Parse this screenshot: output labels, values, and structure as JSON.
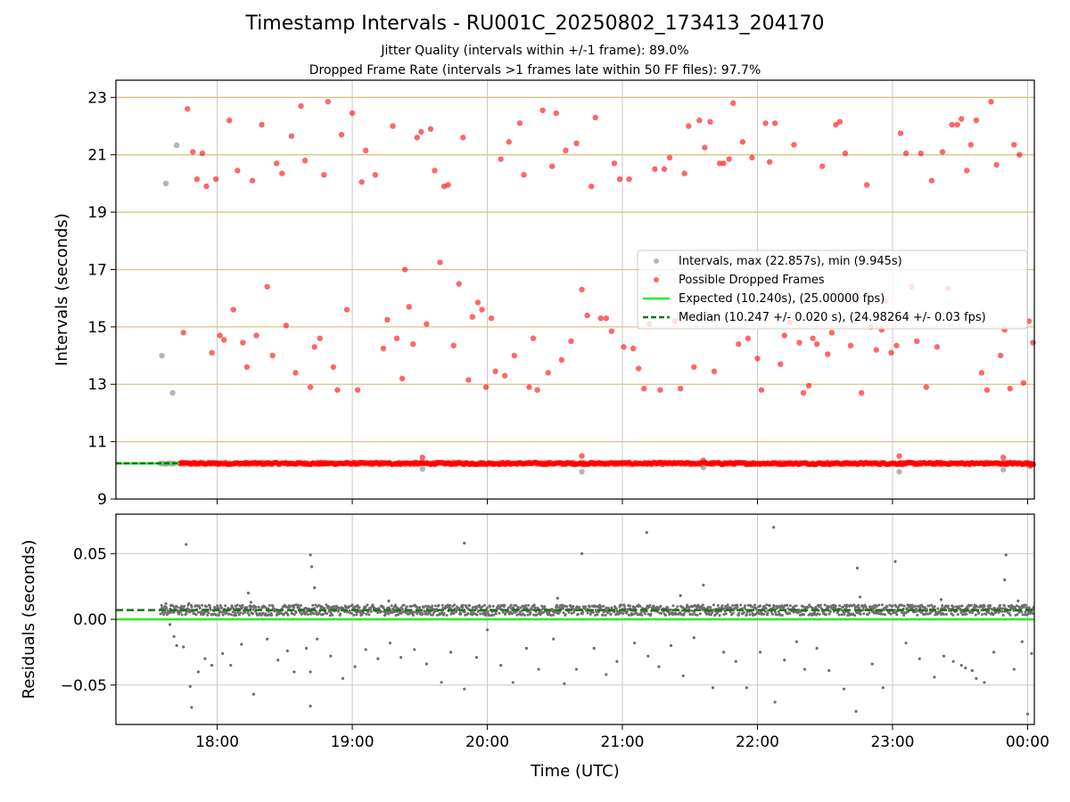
{
  "chart_data": {
    "title": "Timestamp Intervals - RU001C_20250802_173413_204170",
    "subtitle_lines": [
      "Jitter Quality (intervals within +/-1 frame): 89.0%",
      "Dropped Frame Rate (intervals >1 frames late within 50 FF files): 97.7%"
    ],
    "xlabel": "Time (UTC)",
    "x_ticks": [
      "18:00",
      "19:00",
      "20:00",
      "21:00",
      "22:00",
      "23:00",
      "00:00"
    ],
    "x_range_hours": [
      17.25,
      24.05
    ],
    "top": {
      "type": "scatter",
      "ylabel": "Intervals (seconds)",
      "ylim": [
        9,
        23.6
      ],
      "y_ticks": [
        9,
        11,
        13,
        15,
        17,
        19,
        21,
        23
      ],
      "grid": "horizontal, goldenrod",
      "legend_position": "right",
      "legend": [
        "Intervals, max (22.857s), min (9.945s)",
        "Possible Dropped Frames",
        "Expected (10.240s), (25.00000 fps)",
        "Median (10.247 +/- 0.020 s), (24.98264 +/- 0.03 fps)"
      ],
      "expected_value": 10.24,
      "median_value": 10.247,
      "baseline_band_from_hours": 17.72,
      "gray_points": [
        [
          17.59,
          14.0
        ],
        [
          17.62,
          20.0
        ],
        [
          17.67,
          12.7
        ],
        [
          17.7,
          21.33
        ],
        [
          17.58,
          10.24
        ],
        [
          17.6,
          10.24
        ],
        [
          17.62,
          10.22
        ],
        [
          17.64,
          10.25
        ],
        [
          17.66,
          10.23
        ],
        [
          17.68,
          10.24
        ],
        [
          19.52,
          10.05
        ],
        [
          20.7,
          9.95
        ],
        [
          21.6,
          10.1
        ],
        [
          23.05,
          9.95
        ],
        [
          23.82,
          10.02
        ]
      ],
      "red_points": [
        [
          17.75,
          14.8
        ],
        [
          17.78,
          22.6
        ],
        [
          17.82,
          21.1
        ],
        [
          17.85,
          20.15
        ],
        [
          17.89,
          21.05
        ],
        [
          17.92,
          19.9
        ],
        [
          17.96,
          14.1
        ],
        [
          17.99,
          20.15
        ],
        [
          18.02,
          14.7
        ],
        [
          18.05,
          14.55
        ],
        [
          18.09,
          22.2
        ],
        [
          18.12,
          15.6
        ],
        [
          18.15,
          20.45
        ],
        [
          18.19,
          14.45
        ],
        [
          18.22,
          13.6
        ],
        [
          18.26,
          20.1
        ],
        [
          18.29,
          14.7
        ],
        [
          18.33,
          22.05
        ],
        [
          18.37,
          16.4
        ],
        [
          18.41,
          14.0
        ],
        [
          18.44,
          20.7
        ],
        [
          18.48,
          20.35
        ],
        [
          18.51,
          15.05
        ],
        [
          18.55,
          21.65
        ],
        [
          18.58,
          13.4
        ],
        [
          18.62,
          22.7
        ],
        [
          18.65,
          20.8
        ],
        [
          18.69,
          12.9
        ],
        [
          18.72,
          14.3
        ],
        [
          18.76,
          14.6
        ],
        [
          18.79,
          20.3
        ],
        [
          18.82,
          22.85
        ],
        [
          18.86,
          13.6
        ],
        [
          18.89,
          12.8
        ],
        [
          18.92,
          21.7
        ],
        [
          18.96,
          15.6
        ],
        [
          19.0,
          22.45
        ],
        [
          19.04,
          12.8
        ],
        [
          19.07,
          20.05
        ],
        [
          19.1,
          21.15
        ],
        [
          19.17,
          20.3
        ],
        [
          19.23,
          14.25
        ],
        [
          19.26,
          15.25
        ],
        [
          19.3,
          22.0
        ],
        [
          19.33,
          14.6
        ],
        [
          19.37,
          13.2
        ],
        [
          19.39,
          17.0
        ],
        [
          19.42,
          15.7
        ],
        [
          19.45,
          14.4
        ],
        [
          19.48,
          21.6
        ],
        [
          19.51,
          21.8
        ],
        [
          19.55,
          15.1
        ],
        [
          19.58,
          21.9
        ],
        [
          19.61,
          20.45
        ],
        [
          19.65,
          17.25
        ],
        [
          19.68,
          19.9
        ],
        [
          19.71,
          19.95
        ],
        [
          19.75,
          14.35
        ],
        [
          19.79,
          16.5
        ],
        [
          19.82,
          21.6
        ],
        [
          19.86,
          13.15
        ],
        [
          19.89,
          15.35
        ],
        [
          19.93,
          15.85
        ],
        [
          19.96,
          15.6
        ],
        [
          19.99,
          12.9
        ],
        [
          20.03,
          15.3
        ],
        [
          20.06,
          13.45
        ],
        [
          20.1,
          20.85
        ],
        [
          20.13,
          13.3
        ],
        [
          20.16,
          21.45
        ],
        [
          20.2,
          14.0
        ],
        [
          20.24,
          22.1
        ],
        [
          20.27,
          20.3
        ],
        [
          20.31,
          12.9
        ],
        [
          20.34,
          14.6
        ],
        [
          20.37,
          12.8
        ],
        [
          20.41,
          22.55
        ],
        [
          20.45,
          13.4
        ],
        [
          20.48,
          20.6
        ],
        [
          20.51,
          22.45
        ],
        [
          20.55,
          13.85
        ],
        [
          20.58,
          21.15
        ],
        [
          20.62,
          14.5
        ],
        [
          20.66,
          21.4
        ],
        [
          20.7,
          16.3
        ],
        [
          20.74,
          15.4
        ],
        [
          20.77,
          19.9
        ],
        [
          20.8,
          22.3
        ],
        [
          20.84,
          15.3
        ],
        [
          20.88,
          15.3
        ],
        [
          20.92,
          14.85
        ],
        [
          20.94,
          20.7
        ],
        [
          20.98,
          20.15
        ],
        [
          21.01,
          14.3
        ],
        [
          21.05,
          20.15
        ],
        [
          21.08,
          14.25
        ],
        [
          21.12,
          13.55
        ],
        [
          21.16,
          12.85
        ],
        [
          21.2,
          15.1
        ],
        [
          21.24,
          20.5
        ],
        [
          21.28,
          12.8
        ],
        [
          21.31,
          20.5
        ],
        [
          21.35,
          20.9
        ],
        [
          21.39,
          15.2
        ],
        [
          21.43,
          12.85
        ],
        [
          21.46,
          20.35
        ],
        [
          21.49,
          22.0
        ],
        [
          21.53,
          13.6
        ],
        [
          21.57,
          22.2
        ],
        [
          21.61,
          21.25
        ],
        [
          21.65,
          22.15
        ],
        [
          21.68,
          13.45
        ],
        [
          21.72,
          20.7
        ],
        [
          21.75,
          20.7
        ],
        [
          21.79,
          20.85
        ],
        [
          21.82,
          22.8
        ],
        [
          21.86,
          14.4
        ],
        [
          21.89,
          21.45
        ],
        [
          21.93,
          14.6
        ],
        [
          21.96,
          20.9
        ],
        [
          22.0,
          13.9
        ],
        [
          22.03,
          12.8
        ],
        [
          22.06,
          22.1
        ],
        [
          22.09,
          20.75
        ],
        [
          22.13,
          22.1
        ],
        [
          22.17,
          13.7
        ],
        [
          22.2,
          14.7
        ],
        [
          22.24,
          15.15
        ],
        [
          22.27,
          21.35
        ],
        [
          22.31,
          14.45
        ],
        [
          22.34,
          12.7
        ],
        [
          22.38,
          12.95
        ],
        [
          22.41,
          14.6
        ],
        [
          22.44,
          14.4
        ],
        [
          22.48,
          20.6
        ],
        [
          22.52,
          14.05
        ],
        [
          22.55,
          14.8
        ],
        [
          22.58,
          22.05
        ],
        [
          22.61,
          22.15
        ],
        [
          22.65,
          21.05
        ],
        [
          22.69,
          14.35
        ],
        [
          22.73,
          16.0
        ],
        [
          22.77,
          12.7
        ],
        [
          22.81,
          19.95
        ],
        [
          22.84,
          15.0
        ],
        [
          22.88,
          14.2
        ],
        [
          22.92,
          14.9
        ],
        [
          22.95,
          15.9
        ],
        [
          22.99,
          14.1
        ],
        [
          23.03,
          14.35
        ],
        [
          23.06,
          21.75
        ],
        [
          23.1,
          21.05
        ],
        [
          23.14,
          16.4
        ],
        [
          23.18,
          14.5
        ],
        [
          23.21,
          21.05
        ],
        [
          23.25,
          12.9
        ],
        [
          23.29,
          20.1
        ],
        [
          23.33,
          14.3
        ],
        [
          23.37,
          21.1
        ],
        [
          23.41,
          16.35
        ],
        [
          23.44,
          22.05
        ],
        [
          23.48,
          22.05
        ],
        [
          23.51,
          22.25
        ],
        [
          23.55,
          20.45
        ],
        [
          23.58,
          21.35
        ],
        [
          23.62,
          22.2
        ],
        [
          23.66,
          13.4
        ],
        [
          23.7,
          12.8
        ],
        [
          23.73,
          22.85
        ],
        [
          23.77,
          20.65
        ],
        [
          23.8,
          14.0
        ],
        [
          23.83,
          14.9
        ],
        [
          23.87,
          12.85
        ],
        [
          23.9,
          21.35
        ],
        [
          23.94,
          21.0
        ],
        [
          23.97,
          13.05
        ],
        [
          24.01,
          15.2
        ],
        [
          24.04,
          14.45
        ],
        [
          19.52,
          10.45
        ],
        [
          20.7,
          10.5
        ],
        [
          21.6,
          10.35
        ],
        [
          23.05,
          10.5
        ],
        [
          23.82,
          10.45
        ],
        [
          24.02,
          10.15
        ]
      ]
    },
    "bottom": {
      "type": "scatter",
      "ylabel": "Residuals (seconds)",
      "ylim": [
        -0.08,
        0.08
      ],
      "y_ticks": [
        "0.05",
        "0.00",
        "−0.05"
      ],
      "y_tick_values": [
        0.05,
        0.0,
        -0.05
      ],
      "grid": "both, gray",
      "expected_residual": 0.0,
      "median_residual": 0.007,
      "dense_band": {
        "x_start": 17.58,
        "x_end": 24.05,
        "center": 0.007,
        "spread": 0.004
      },
      "outliers": [
        [
          17.62,
          0.012
        ],
        [
          17.65,
          -0.004
        ],
        [
          17.68,
          -0.013
        ],
        [
          17.7,
          -0.02
        ],
        [
          17.75,
          -0.021
        ],
        [
          17.77,
          0.057
        ],
        [
          17.8,
          -0.051
        ],
        [
          17.81,
          -0.067
        ],
        [
          17.86,
          -0.04
        ],
        [
          17.91,
          -0.03
        ],
        [
          17.96,
          -0.035
        ],
        [
          18.04,
          -0.026
        ],
        [
          18.1,
          -0.035
        ],
        [
          18.18,
          -0.019
        ],
        [
          18.23,
          0.02
        ],
        [
          18.27,
          -0.057
        ],
        [
          18.37,
          -0.015
        ],
        [
          18.45,
          -0.031
        ],
        [
          18.52,
          -0.024
        ],
        [
          18.57,
          -0.04
        ],
        [
          18.66,
          -0.022
        ],
        [
          18.69,
          -0.04
        ],
        [
          18.69,
          -0.066
        ],
        [
          18.69,
          0.049
        ],
        [
          18.7,
          0.04
        ],
        [
          18.72,
          0.024
        ],
        [
          18.74,
          -0.015
        ],
        [
          18.84,
          -0.028
        ],
        [
          18.93,
          -0.045
        ],
        [
          19.02,
          -0.036
        ],
        [
          19.1,
          -0.023
        ],
        [
          19.19,
          -0.03
        ],
        [
          19.28,
          -0.018
        ],
        [
          19.36,
          -0.029
        ],
        [
          19.46,
          -0.023
        ],
        [
          19.55,
          -0.034
        ],
        [
          19.66,
          -0.048
        ],
        [
          19.73,
          -0.025
        ],
        [
          19.83,
          0.058
        ],
        [
          19.83,
          -0.053
        ],
        [
          19.92,
          -0.029
        ],
        [
          20.0,
          -0.008
        ],
        [
          20.1,
          -0.035
        ],
        [
          20.19,
          -0.048
        ],
        [
          20.29,
          -0.022
        ],
        [
          20.38,
          -0.038
        ],
        [
          20.49,
          -0.015
        ],
        [
          20.57,
          -0.049
        ],
        [
          20.66,
          -0.038
        ],
        [
          20.7,
          0.05
        ],
        [
          20.79,
          -0.022
        ],
        [
          20.88,
          -0.042
        ],
        [
          20.96,
          -0.032
        ],
        [
          21.09,
          -0.018
        ],
        [
          21.18,
          0.066
        ],
        [
          21.19,
          -0.028
        ],
        [
          21.27,
          -0.036
        ],
        [
          21.36,
          -0.02
        ],
        [
          21.45,
          -0.043
        ],
        [
          21.53,
          -0.014
        ],
        [
          21.6,
          0.026
        ],
        [
          21.67,
          -0.052
        ],
        [
          21.75,
          -0.025
        ],
        [
          21.84,
          -0.032
        ],
        [
          21.92,
          -0.052
        ],
        [
          22.02,
          -0.025
        ],
        [
          22.12,
          0.07
        ],
        [
          22.13,
          -0.063
        ],
        [
          22.2,
          -0.031
        ],
        [
          22.29,
          -0.017
        ],
        [
          22.35,
          -0.038
        ],
        [
          22.44,
          -0.022
        ],
        [
          22.53,
          -0.039
        ],
        [
          22.64,
          -0.053
        ],
        [
          22.73,
          -0.07
        ],
        [
          22.74,
          0.039
        ],
        [
          22.85,
          -0.034
        ],
        [
          22.93,
          -0.052
        ],
        [
          23.02,
          0.044
        ],
        [
          23.1,
          -0.018
        ],
        [
          23.2,
          -0.03
        ],
        [
          23.31,
          -0.044
        ],
        [
          23.38,
          -0.028
        ],
        [
          23.45,
          -0.032
        ],
        [
          23.51,
          -0.035
        ],
        [
          23.54,
          -0.037
        ],
        [
          23.59,
          -0.039
        ],
        [
          23.62,
          -0.045
        ],
        [
          23.68,
          -0.048
        ],
        [
          23.75,
          -0.025
        ],
        [
          23.83,
          0.03
        ],
        [
          23.84,
          0.049
        ],
        [
          23.9,
          -0.038
        ],
        [
          23.96,
          -0.017
        ],
        [
          24.0,
          -0.072
        ],
        [
          24.03,
          -0.026
        ],
        [
          23.36,
          0.015
        ],
        [
          22.76,
          0.017
        ],
        [
          21.43,
          0.018
        ],
        [
          20.52,
          0.016
        ],
        [
          19.27,
          0.014
        ],
        [
          18.25,
          0.013
        ],
        [
          17.79,
          0.012
        ],
        [
          23.93,
          0.014
        ]
      ]
    }
  }
}
